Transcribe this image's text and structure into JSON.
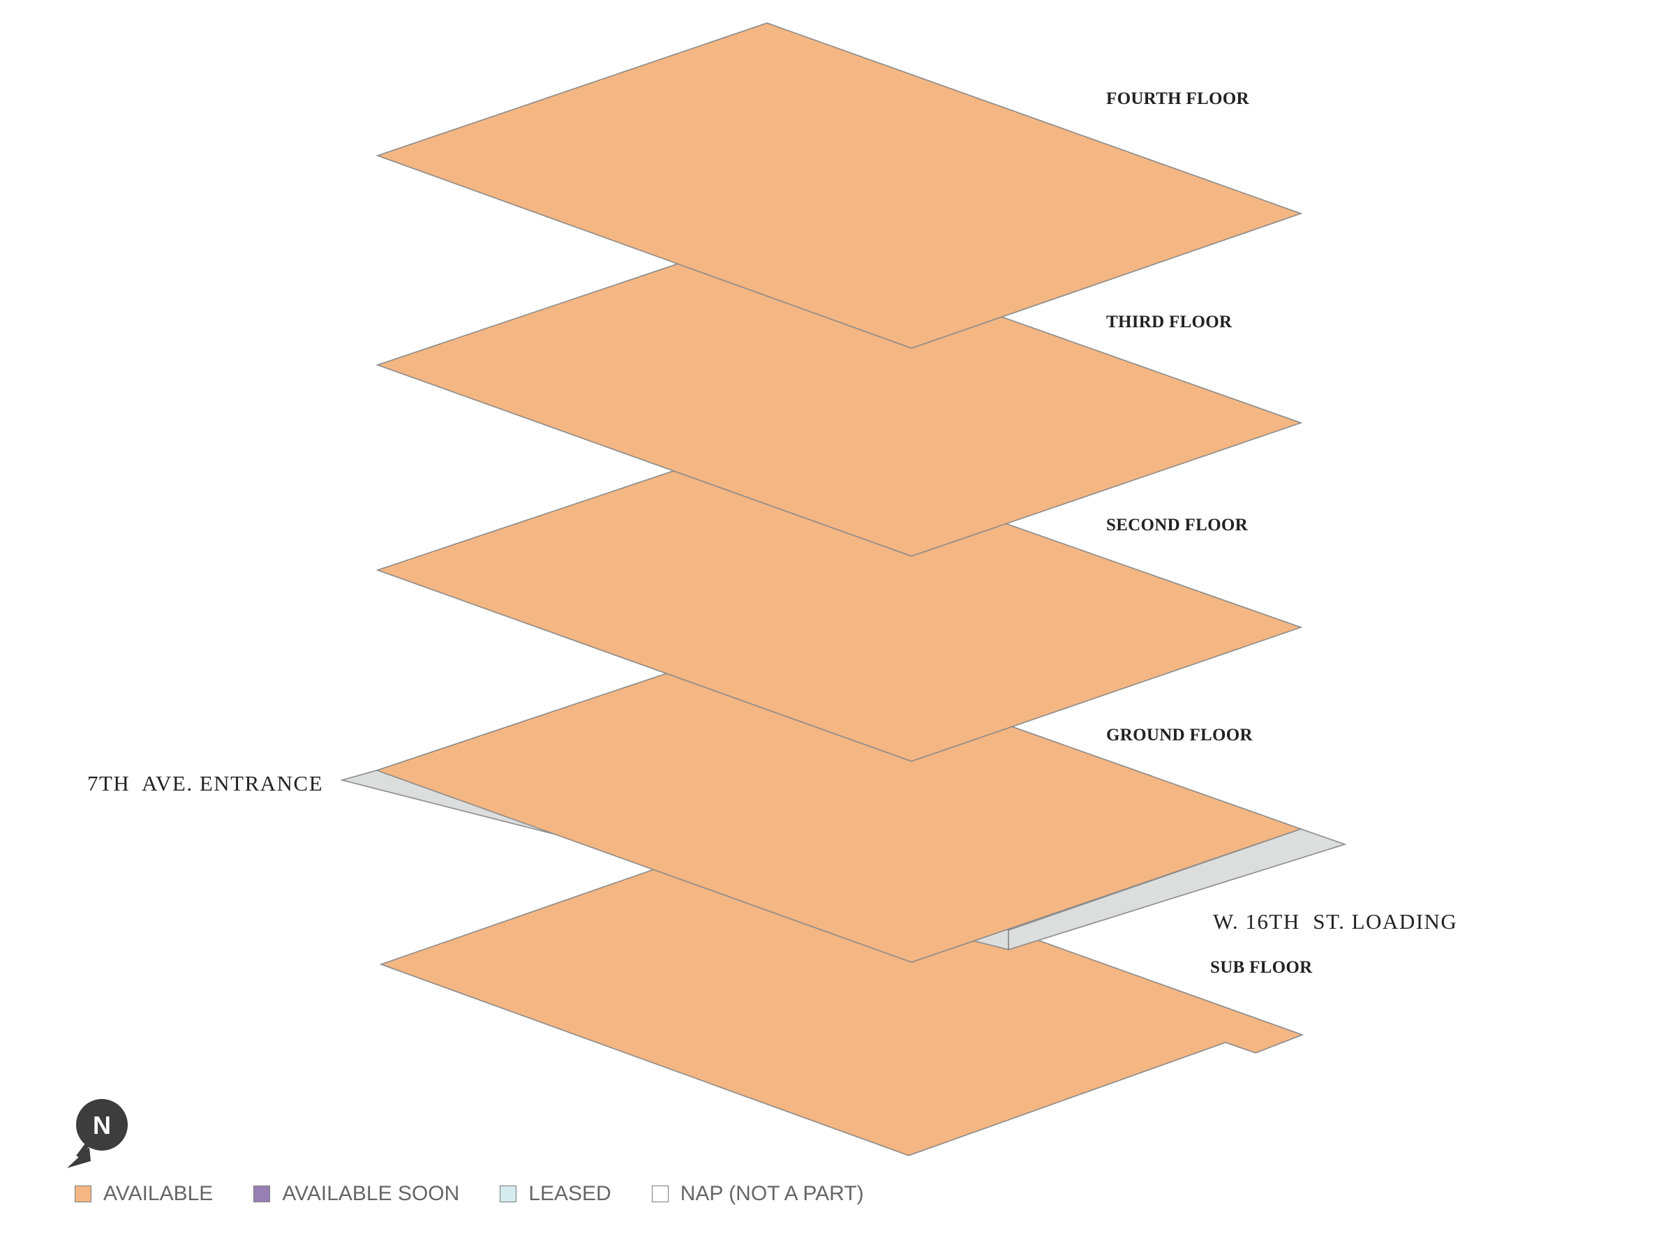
{
  "floors": [
    {
      "id": "fourth",
      "label": "FOURTH FLOOR"
    },
    {
      "id": "third",
      "label": "THIRD FLOOR"
    },
    {
      "id": "second",
      "label": "SECOND FLOOR"
    },
    {
      "id": "ground",
      "label": "GROUND FLOOR"
    },
    {
      "id": "sub",
      "label": "SUB FLOOR"
    }
  ],
  "streets": {
    "entrance": "7TH  AVE. ENTRANCE",
    "loading": "W. 16TH  ST. LOADING"
  },
  "compass": {
    "letter": "N",
    "icon": "north-arrow-icon"
  },
  "legend": [
    {
      "label": "AVAILABLE",
      "color": "#f4b683"
    },
    {
      "label": "AVAILABLE SOON",
      "color": "#9880b4"
    },
    {
      "label": "LEASED",
      "color": "#d5ebef"
    },
    {
      "label": "NAP (NOT A PART)",
      "color": "#ffffff"
    }
  ],
  "colors": {
    "available": "#f4b683",
    "street": "#dcdddd",
    "outline": "#8a8a8a"
  }
}
